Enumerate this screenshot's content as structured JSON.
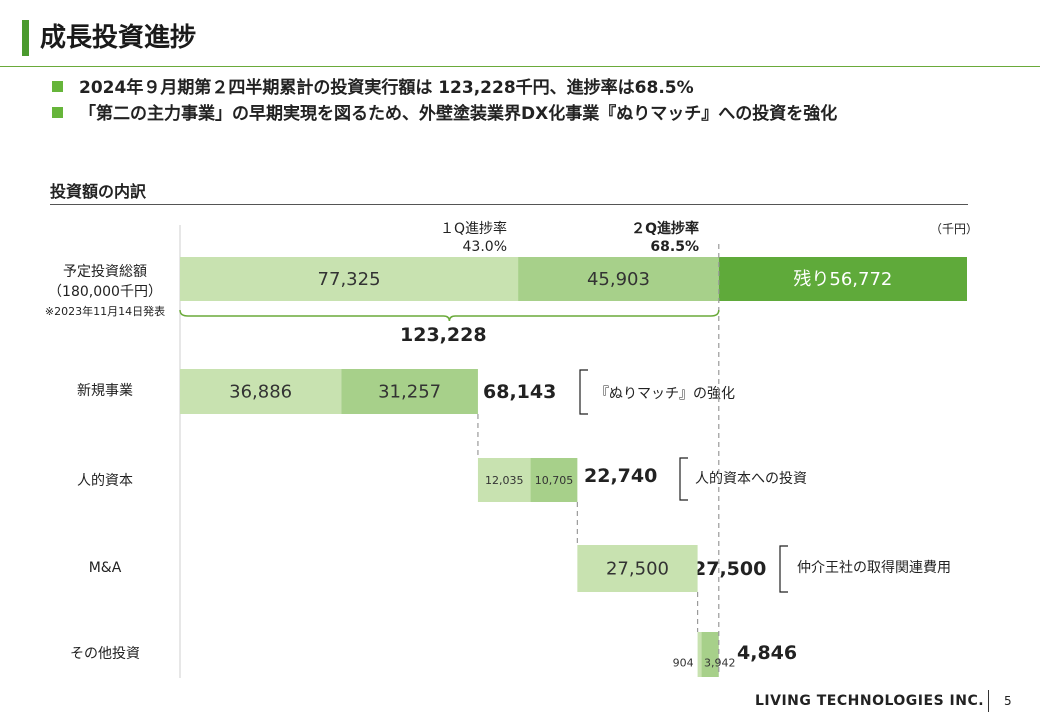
{
  "header": {
    "title": "成長投資進捗",
    "bullets": [
      "2024年９月期第２四半期累計の投資実行額は 123,228千円、進捗率は68.5%",
      "「第二の主力事業」の早期実現を図るため、外壁塗装業界DX化事業『ぬりマッチ』への投資を強化"
    ]
  },
  "section": {
    "title": "投資額の内訳",
    "unit": "（千円）"
  },
  "progress": {
    "q1_label": "１Q進捗率",
    "q1_value": "43.0%",
    "q2_label": "２Q進捗率",
    "q2_value": "68.5%",
    "cumulative_total": "123,228"
  },
  "plan": {
    "label_line1": "予定投資総額",
    "label_line2": "（180,000千円）",
    "note": "※2023年11月14日発表"
  },
  "categories": [
    {
      "name": "新規事業",
      "total": "68,143",
      "desc": "『ぬりマッチ』の強化"
    },
    {
      "name": "人的資本",
      "total": "22,740",
      "desc": "人的資本への投資"
    },
    {
      "name": "M&A",
      "total": "27,500",
      "desc": "仲介王社の取得関連費用"
    },
    {
      "name": "その他投資",
      "total": "4,846",
      "desc": ""
    }
  ],
  "chart_data": {
    "type": "bar",
    "orientation": "horizontal-waterfall",
    "unit": "千円",
    "plan_total": 180000,
    "plan_segments": [
      {
        "name": "1Q",
        "value": 77325,
        "label": "77,325"
      },
      {
        "name": "2Q",
        "value": 45903,
        "label": "45,903"
      },
      {
        "name": "残り",
        "value": 56772,
        "label": "残り56,772"
      }
    ],
    "rows": [
      {
        "category": "新規事業",
        "q1": 36886,
        "q1_label": "36,886",
        "q2": 31257,
        "q2_label": "31,257",
        "total": 68143
      },
      {
        "category": "人的資本",
        "q1": 12035,
        "q1_label": "12,035",
        "q2": 10705,
        "q2_label": "10,705",
        "total": 22740
      },
      {
        "category": "M&A",
        "q1": 27500,
        "q1_label": "27,500",
        "q2": 0,
        "q2_label": "",
        "total": 27500
      },
      {
        "category": "その他投資",
        "q1": 904,
        "q1_label": "904",
        "q2": 3942,
        "q2_label": "3,942",
        "total": 4846
      }
    ],
    "colors": {
      "q1": "#c8e2b0",
      "q2": "#a7d08a",
      "remaining": "#5faa3a",
      "bracket": "#6aaa3a",
      "guide": "#9a9a9a"
    }
  },
  "footer": {
    "company": "LIVING TECHNOLOGIES INC.",
    "page": "5"
  }
}
